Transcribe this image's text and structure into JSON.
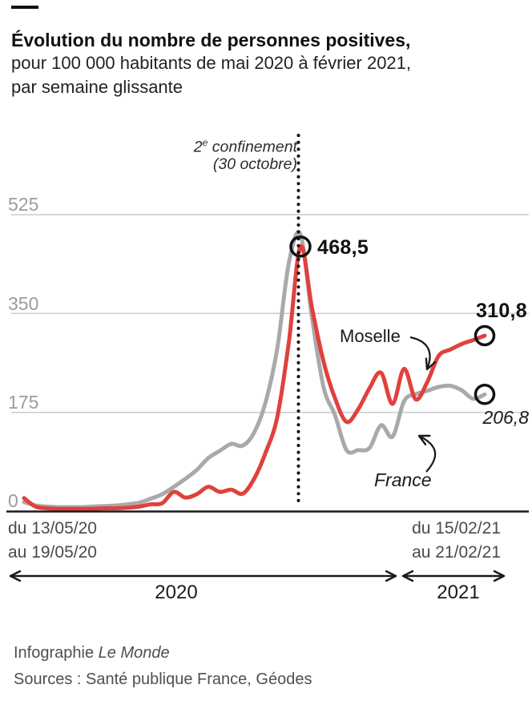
{
  "header": {
    "title": "Évolution du nombre de personnes positives,",
    "subtitle_line1": "pour 100 000 habitants de mai 2020 à février 2021,",
    "subtitle_line2": "par semaine glissante"
  },
  "chart_data": {
    "type": "line",
    "title": "Évolution du nombre de personnes positives, pour 100 000 habitants de mai 2020 à février 2021, par semaine glissante",
    "ylabel": "personnes positives pour 100 000 habitants",
    "ylim": [
      0,
      560
    ],
    "y_ticks": [
      525,
      350,
      175,
      0
    ],
    "grid": "horizontal",
    "x_is_weeks": true,
    "n_points": 41,
    "x_start_label": [
      "du 13/05/20",
      "au 19/05/20"
    ],
    "x_end_label": [
      "du 15/02/21",
      "au 21/02/21"
    ],
    "series": [
      {
        "name": "France",
        "color": "#a9a9a9",
        "end_label": "206,8",
        "values": [
          16,
          10,
          8,
          7,
          7,
          7,
          8,
          9,
          10,
          12,
          15,
          22,
          30,
          43,
          57,
          73,
          94,
          107,
          119,
          116,
          140,
          195,
          290,
          440,
          490,
          343,
          220,
          170,
          108,
          108,
          112,
          152,
          132,
          195,
          207,
          213,
          220,
          222,
          214,
          199,
          206.8
        ]
      },
      {
        "name": "Moselle",
        "color": "#e0413d",
        "end_label": "310,8",
        "values": [
          23,
          8,
          5,
          4,
          4,
          4,
          4,
          5,
          5,
          6,
          8,
          12,
          14,
          34,
          24,
          30,
          43,
          34,
          38,
          31,
          58,
          105,
          168,
          300,
          468.5,
          360,
          265,
          200,
          158,
          180,
          218,
          245,
          190,
          252,
          198,
          228,
          275,
          286,
          296,
          303,
          310.8
        ]
      }
    ],
    "annotations": {
      "confinement_num": "2",
      "confinement_sup": "e",
      "confinement_rest": " confinement",
      "confinement_line2": "(30 octobre)",
      "peak_label": "468,5",
      "moselle_end_label": "310,8",
      "france_end_label": "206,8"
    },
    "legend_position": "inline"
  },
  "timeline": {
    "left_label": "2020",
    "right_label": "2021"
  },
  "footer": {
    "credit_prefix": "Infographie ",
    "credit_name": "Le Monde",
    "sources": "Sources : Santé publique France, Géodes"
  },
  "colors": {
    "moselle": "#e0413d",
    "france": "#a9a9a9",
    "grid": "#cbcbcb",
    "axis": "#1a1a1a",
    "tick_text": "#9c9c9c"
  }
}
